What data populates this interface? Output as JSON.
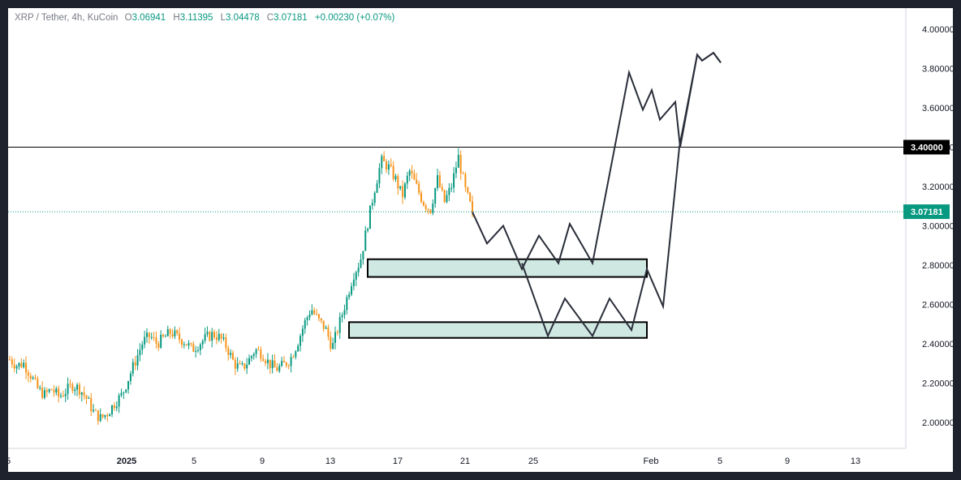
{
  "legend": {
    "symbol": "XRP / Tether, 4h, KuCoin",
    "open_label": "O",
    "open": "3.06941",
    "high_label": "H",
    "high": "3.11395",
    "low_label": "L",
    "low": "3.04478",
    "close_label": "C",
    "close": "3.07181",
    "change": "+0.00230 (+0.07%)"
  },
  "colors": {
    "up": "#089981",
    "down": "#f7931a",
    "zone_fill": "#cfe8e2",
    "drawing": "#2a2e39",
    "price_badge": "#089981",
    "level_badge": "#000000"
  },
  "chart_data": {
    "type": "candlestick",
    "symbol": "XRP / Tether",
    "timeframe": "4h",
    "exchange": "KuCoin",
    "y_axis": {
      "ticks": [
        "2.00000",
        "2.20000",
        "2.40000",
        "2.60000",
        "2.80000",
        "3.00000",
        "3.20000",
        "3.40000",
        "3.60000",
        "3.80000",
        "4.00000"
      ],
      "range": [
        1.86,
        4.06
      ]
    },
    "x_axis": {
      "ticks": [
        {
          "label": "5",
          "bold": false
        },
        {
          "label": "2025",
          "bold": true
        },
        {
          "label": "5",
          "bold": false
        },
        {
          "label": "9",
          "bold": false
        },
        {
          "label": "13",
          "bold": false
        },
        {
          "label": "17",
          "bold": false
        },
        {
          "label": "21",
          "bold": false
        },
        {
          "label": "25",
          "bold": false
        },
        {
          "label": "Feb",
          "bold": false
        },
        {
          "label": "5",
          "bold": false
        },
        {
          "label": "9",
          "bold": false
        },
        {
          "label": "13",
          "bold": false
        }
      ]
    },
    "price_path": [
      [
        0,
        2.32
      ],
      [
        2,
        2.29
      ],
      [
        4,
        2.3
      ],
      [
        6,
        2.24
      ],
      [
        8,
        2.17
      ],
      [
        10,
        2.14
      ],
      [
        12,
        2.17
      ],
      [
        14,
        2.13
      ],
      [
        16,
        2.16
      ],
      [
        18,
        2.19
      ],
      [
        20,
        2.17
      ],
      [
        22,
        2.12
      ],
      [
        24,
        2.05
      ],
      [
        26,
        2.02
      ],
      [
        28,
        2.05
      ],
      [
        30,
        2.1
      ],
      [
        32,
        2.14
      ],
      [
        34,
        2.23
      ],
      [
        36,
        2.32
      ],
      [
        38,
        2.41
      ],
      [
        40,
        2.44
      ],
      [
        42,
        2.4
      ],
      [
        44,
        2.43
      ],
      [
        46,
        2.46
      ],
      [
        48,
        2.43
      ],
      [
        50,
        2.41
      ],
      [
        52,
        2.37
      ],
      [
        54,
        2.4
      ],
      [
        56,
        2.43
      ],
      [
        58,
        2.45
      ],
      [
        60,
        2.43
      ],
      [
        62,
        2.38
      ],
      [
        64,
        2.3
      ],
      [
        66,
        2.27
      ],
      [
        68,
        2.31
      ],
      [
        70,
        2.37
      ],
      [
        72,
        2.35
      ],
      [
        74,
        2.3
      ],
      [
        76,
        2.27
      ],
      [
        78,
        2.29
      ],
      [
        80,
        2.32
      ],
      [
        82,
        2.4
      ],
      [
        84,
        2.5
      ],
      [
        86,
        2.58
      ],
      [
        88,
        2.52
      ],
      [
        90,
        2.48
      ],
      [
        92,
        2.38
      ],
      [
        94,
        2.5
      ],
      [
        96,
        2.62
      ],
      [
        98,
        2.75
      ],
      [
        100,
        2.82
      ],
      [
        102,
        3.0
      ],
      [
        104,
        3.18
      ],
      [
        106,
        3.33
      ],
      [
        108,
        3.3
      ],
      [
        110,
        3.24
      ],
      [
        112,
        3.15
      ],
      [
        114,
        3.28
      ],
      [
        116,
        3.2
      ],
      [
        118,
        3.12
      ],
      [
        120,
        3.08
      ],
      [
        122,
        3.24
      ],
      [
        124,
        3.12
      ],
      [
        126,
        3.2
      ],
      [
        128,
        3.35
      ],
      [
        130,
        3.18
      ],
      [
        132,
        3.07
      ]
    ],
    "horizontal_level": 3.4,
    "last_price": 3.07181,
    "zones": [
      {
        "low": 2.74,
        "high": 2.83
      },
      {
        "low": 2.43,
        "high": 2.51
      }
    ],
    "projection_paths": [
      [
        [
          0,
          3.07
        ],
        [
          4,
          2.91
        ],
        [
          8,
          3.0
        ],
        [
          12,
          2.78
        ],
        [
          16,
          2.95
        ],
        [
          20,
          2.81
        ],
        [
          24,
          3.01
        ],
        [
          28,
          2.81
        ],
        [
          32,
          3.78
        ],
        [
          36,
          3.59
        ],
        [
          40,
          3.69
        ],
        [
          44,
          3.54
        ],
        [
          48,
          3.63
        ],
        [
          52,
          3.4
        ],
        [
          56,
          3.87
        ],
        [
          59,
          3.84
        ],
        [
          62,
          3.88
        ],
        [
          65,
          3.83
        ]
      ],
      [
        [
          0,
          2.81
        ],
        [
          4,
          2.44
        ],
        [
          8,
          2.63
        ],
        [
          12,
          2.44
        ],
        [
          16,
          2.63
        ],
        [
          20,
          2.47
        ],
        [
          24,
          2.78
        ],
        [
          28,
          2.59
        ],
        [
          32,
          3.4
        ],
        [
          36,
          3.87
        ],
        [
          39,
          3.84
        ],
        [
          42,
          3.88
        ],
        [
          45,
          3.83
        ]
      ]
    ],
    "grid": false,
    "level_label": "3.40000",
    "price_label": "3.07181"
  }
}
